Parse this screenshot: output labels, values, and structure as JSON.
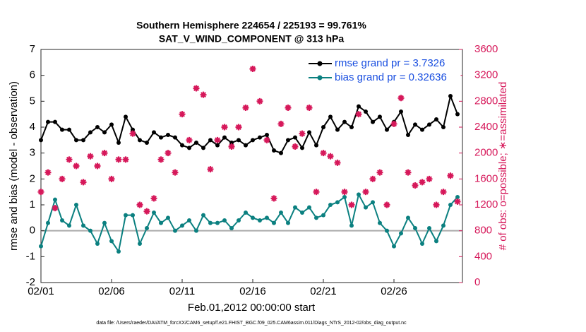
{
  "chart_data": {
    "type": "line",
    "title": "Southern Hemisphere 224654 / 225193 = 99.761%",
    "subtitle": "SAT_V_WIND_COMPONENT @ 313 hPa",
    "ylabel": "rmse and bias (model - observation)",
    "y2label": "# of obs: o=possible; ∗=assimilated",
    "xlabel": "Feb.01,2012 00:00:00 start",
    "footnote": "data file: /Users/raeder/DAI/ATM_forcXX/CAM6_setup/f.e21.FHIST_BGC.f09_025.CAM6assim.011/Diags_NTrS_2012-02/obs_diag_output.nc",
    "x": [
      0,
      0.5,
      1,
      1.5,
      2,
      2.5,
      3,
      3.5,
      4,
      4.5,
      5,
      5.5,
      6,
      6.5,
      7,
      7.5,
      8,
      8.5,
      9,
      9.5,
      10,
      10.5,
      11,
      11.5,
      12,
      12.5,
      13,
      13.5,
      14,
      14.5,
      15,
      15.5,
      16,
      16.5,
      17,
      17.5,
      18,
      18.5,
      19,
      19.5,
      20,
      20.5,
      21,
      21.5,
      22,
      22.5,
      23,
      23.5,
      24,
      24.5,
      25,
      25.5,
      26,
      26.5,
      27,
      27.5,
      28,
      28.5,
      29,
      29.5
    ],
    "series": [
      {
        "name": "rmse grand pr = 3.7326",
        "color": "#000000",
        "values": [
          3.5,
          4.2,
          4.2,
          3.9,
          3.9,
          3.5,
          3.5,
          3.8,
          4.0,
          3.8,
          4.1,
          3.4,
          4.4,
          3.9,
          3.5,
          3.4,
          3.8,
          3.6,
          3.7,
          3.6,
          3.3,
          3.2,
          3.4,
          3.2,
          3.5,
          3.3,
          3.6,
          3.4,
          3.5,
          3.3,
          3.5,
          3.6,
          3.7,
          3.1,
          3.0,
          3.5,
          3.6,
          3.2,
          3.8,
          3.3,
          4.0,
          4.4,
          3.9,
          4.2,
          4.0,
          4.8,
          4.6,
          4.2,
          4.4,
          3.9,
          4.2,
          4.6,
          3.7,
          4.1,
          3.9,
          4.1,
          4.3,
          4.0,
          5.2,
          4.5
        ]
      },
      {
        "name": "bias grand pr = 0.32636",
        "color": "#0b8080",
        "values": [
          -0.6,
          0.3,
          1.2,
          0.4,
          0.2,
          1.0,
          0.2,
          0.0,
          -0.5,
          0.3,
          -0.4,
          -0.8,
          0.6,
          0.6,
          -0.5,
          0.1,
          0.7,
          0.3,
          0.5,
          0.0,
          0.2,
          0.4,
          0.0,
          0.6,
          0.3,
          0.3,
          0.4,
          0.1,
          0.4,
          0.7,
          0.5,
          0.4,
          0.5,
          0.3,
          0.7,
          0.3,
          0.9,
          0.7,
          0.9,
          0.5,
          0.6,
          1.0,
          1.1,
          1.3,
          0.2,
          1.4,
          0.9,
          1.1,
          0.3,
          0.0,
          -0.6,
          -0.1,
          0.5,
          0.1,
          -0.5,
          0.1,
          -0.4,
          0.2,
          1.0,
          1.3
        ]
      },
      {
        "color": "#d6185a",
        "axis": "y2",
        "values": [
          1400,
          1700,
          1150,
          1600,
          1900,
          1800,
          1550,
          1950,
          1800,
          2000,
          1600,
          1900,
          1900,
          2300,
          1200,
          1100,
          1300,
          1900,
          2000,
          1700,
          2600,
          2200,
          3000,
          2900,
          1750,
          2200,
          2400,
          2100,
          2400,
          2700,
          3300,
          2800,
          2200,
          1300,
          2450,
          2700,
          2100,
          2300,
          2700,
          1400,
          2000,
          1950,
          1850,
          1400,
          1200,
          2600,
          1400,
          1600,
          1700,
          1200,
          2450,
          2850,
          1700,
          1500,
          1550,
          1600,
          1200,
          1400,
          1650,
          1250
        ]
      }
    ],
    "hline": 0,
    "xlim": [
      0,
      29.85
    ],
    "xticks": [
      {
        "value": 0,
        "label": "02/01"
      },
      {
        "value": 5,
        "label": "02/06"
      },
      {
        "value": 10,
        "label": "02/11"
      },
      {
        "value": 15,
        "label": "02/16"
      },
      {
        "value": 20,
        "label": "02/21"
      },
      {
        "value": 25,
        "label": "02/26"
      }
    ],
    "ylim": [
      -2,
      7
    ],
    "yticks": [
      -2,
      -1,
      0,
      1,
      2,
      3,
      4,
      5,
      6,
      7
    ],
    "y2lim": [
      0,
      3600
    ],
    "y2ticks": [
      0,
      400,
      800,
      1200,
      1600,
      2000,
      2400,
      2800,
      3200,
      3600
    ]
  }
}
